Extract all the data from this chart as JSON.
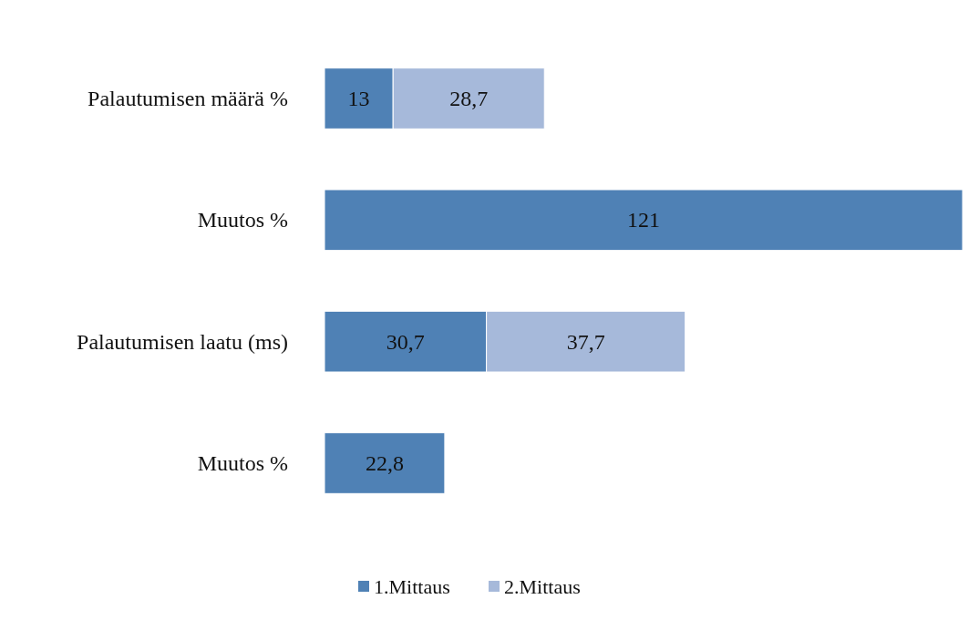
{
  "chart_data": {
    "type": "bar",
    "orientation": "horizontal",
    "stacked": true,
    "categories": [
      "Palautumisen määrä %",
      "Muutos %",
      "Palautumisen laatu (ms)",
      "Muutos %"
    ],
    "series": [
      {
        "name": "1.Mittaus",
        "color": "#4f81b5",
        "values": [
          13,
          121,
          30.7,
          22.8
        ],
        "value_labels": [
          "13",
          "121",
          "30,7",
          "22,8"
        ]
      },
      {
        "name": "2.Mittaus",
        "color": "#a6b9da",
        "values": [
          28.7,
          null,
          37.7,
          null
        ],
        "value_labels": [
          "28,7",
          null,
          "37,7",
          null
        ]
      }
    ],
    "legend": "bottom"
  }
}
